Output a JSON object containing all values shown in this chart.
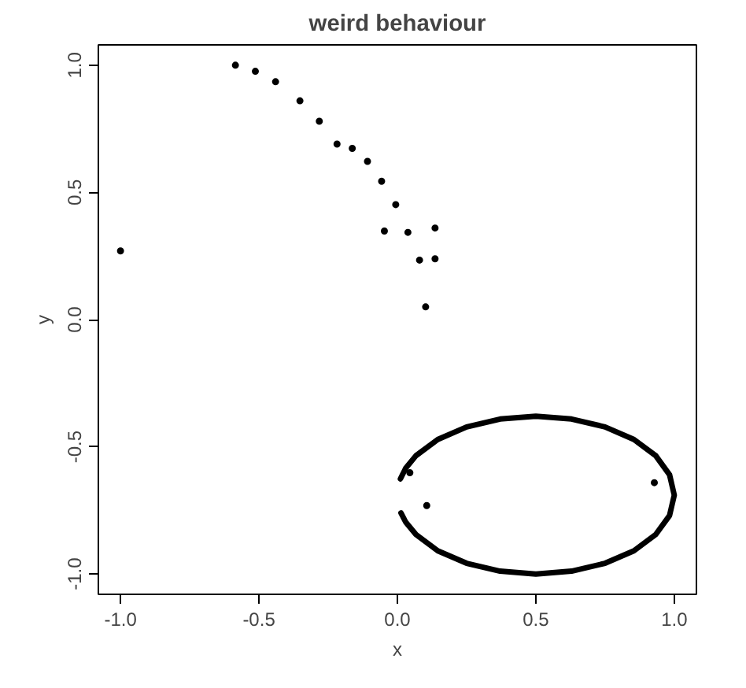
{
  "chart_data": {
    "type": "scatter",
    "title": "weird behaviour",
    "xlabel": "x",
    "ylabel": "y",
    "xlim": [
      -1.08,
      1.08
    ],
    "ylim": [
      -1.08,
      1.08
    ],
    "xticks": [
      {
        "value": -1,
        "label": "-1.0"
      },
      {
        "value": -0.5,
        "label": "-0.5"
      },
      {
        "value": 0,
        "label": "0.0"
      },
      {
        "value": 0.5,
        "label": "0.5"
      },
      {
        "value": 1,
        "label": "1.0"
      }
    ],
    "yticks": [
      {
        "value": -1,
        "label": "-1.0"
      },
      {
        "value": -0.5,
        "label": "-0.5"
      },
      {
        "value": 0,
        "label": "0.0"
      },
      {
        "value": 0.5,
        "label": "0.5"
      },
      {
        "value": 1,
        "label": "1.0"
      }
    ],
    "series": [
      {
        "marker": "circle",
        "color": "#000000",
        "x": [
          -1.0,
          -0.585,
          -0.513,
          -0.44,
          -0.352,
          -0.282,
          -0.218,
          -0.163,
          -0.108,
          -0.057,
          -0.006,
          -0.047,
          0.038,
          0.136,
          0.08,
          0.136,
          0.102,
          0.045,
          0.106,
          0.928
        ],
        "values": [
          0.27,
          1.0,
          0.976,
          0.935,
          0.86,
          0.78,
          0.69,
          0.673,
          0.622,
          0.544,
          0.452,
          0.348,
          0.343,
          0.36,
          0.234,
          0.239,
          0.05,
          -0.602,
          -0.731,
          -0.641
        ]
      },
      {
        "type": "line",
        "color": "#000000",
        "line_style": "solid",
        "x": [
          0.013,
          0.03,
          0.067,
          0.146,
          0.25,
          0.371,
          0.5,
          0.629,
          0.75,
          0.854,
          0.933,
          0.983,
          1.0,
          0.983,
          0.933,
          0.854,
          0.75,
          0.629,
          0.5,
          0.371,
          0.25,
          0.146,
          0.067,
          0.03,
          0.011
        ],
        "values": [
          -0.76,
          -0.796,
          -0.845,
          -0.909,
          -0.958,
          -0.989,
          -1.0,
          -0.989,
          -0.958,
          -0.909,
          -0.845,
          -0.77,
          -0.69,
          -0.61,
          -0.535,
          -0.471,
          -0.422,
          -0.391,
          -0.38,
          -0.391,
          -0.422,
          -0.471,
          -0.535,
          -0.584,
          -0.626
        ]
      }
    ]
  }
}
